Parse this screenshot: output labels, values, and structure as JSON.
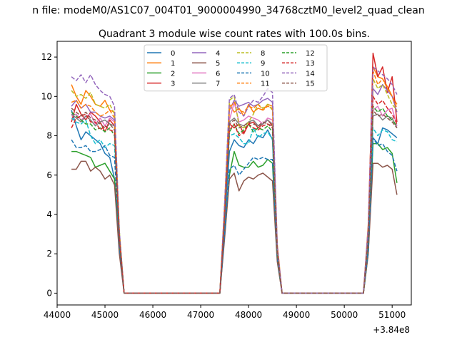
{
  "figure": {
    "suptitle": "n file: modeM0/AS1C07_004T01_9000004990_34768cztM0_level2_quad_clean",
    "offset_label": "+3.84e8"
  },
  "chart_data": {
    "type": "line",
    "title": "Quadrant 3 module wise count rates with 100.0s bins.",
    "xlabel": "",
    "ylabel": "",
    "xlim": [
      44000,
      51400
    ],
    "ylim": [
      -0.6,
      12.8
    ],
    "x_offset": 384000000,
    "x_ticks": [
      44000,
      45000,
      46000,
      47000,
      48000,
      49000,
      50000,
      51000
    ],
    "x_tick_labels": [
      "44000",
      "45000",
      "46000",
      "47000",
      "48000",
      "49000",
      "50000",
      "51000"
    ],
    "y_ticks": [
      0,
      2,
      4,
      6,
      8,
      10,
      12
    ],
    "y_tick_labels": [
      "0",
      "2",
      "4",
      "6",
      "8",
      "10",
      "12"
    ],
    "grid": false,
    "legend": {
      "placement": "top-center",
      "columns": 4
    },
    "x": [
      44300,
      44400,
      44500,
      44600,
      44700,
      44800,
      44900,
      45000,
      45100,
      45200,
      45300,
      45400,
      45500,
      46000,
      46500,
      47000,
      47400,
      47500,
      47600,
      47700,
      47800,
      47900,
      48000,
      48100,
      48200,
      48300,
      48400,
      48500,
      48600,
      48700,
      48800,
      49500,
      50000,
      50400,
      50500,
      50600,
      50700,
      50800,
      50900,
      51000,
      51100
    ],
    "series": [
      {
        "name": "0",
        "color": "#1f77b4",
        "dash": false,
        "values": [
          9.3,
          8.5,
          7.8,
          8.2,
          8.0,
          7.8,
          7.6,
          7.1,
          6.9,
          5.8,
          3.0,
          0,
          0,
          0,
          0,
          0,
          0,
          3.5,
          7.2,
          7.8,
          7.5,
          7.4,
          7.8,
          7.6,
          8.0,
          7.9,
          8.3,
          7.8,
          2.0,
          0,
          0,
          0,
          0,
          0,
          2.3,
          7.9,
          7.6,
          8.4,
          8.3,
          8.1,
          7.9
        ]
      },
      {
        "name": "1",
        "color": "#ff7f0e",
        "dash": false,
        "values": [
          10.6,
          10.0,
          9.6,
          10.3,
          10.0,
          9.6,
          9.5,
          9.8,
          9.3,
          9.2,
          3.0,
          0,
          0,
          0,
          0,
          0,
          0,
          4.5,
          9.6,
          9.2,
          9.4,
          9.0,
          9.6,
          9.2,
          9.4,
          9.3,
          9.6,
          9.5,
          2.5,
          0,
          0,
          0,
          0,
          0,
          3.5,
          11.5,
          11.0,
          10.9,
          10.5,
          10.0,
          9.6
        ]
      },
      {
        "name": "2",
        "color": "#2ca02c",
        "dash": false,
        "values": [
          7.2,
          7.2,
          7.1,
          7.0,
          6.9,
          6.4,
          6.5,
          6.6,
          6.2,
          5.8,
          2.5,
          0,
          0,
          0,
          0,
          0,
          0,
          3.0,
          6.0,
          7.2,
          6.5,
          6.4,
          6.4,
          6.7,
          6.4,
          6.5,
          6.8,
          6.6,
          1.8,
          0,
          0,
          0,
          0,
          0,
          2.0,
          7.6,
          7.6,
          7.3,
          7.4,
          7.1,
          5.6
        ]
      },
      {
        "name": "3",
        "color": "#d62728",
        "dash": false,
        "values": [
          8.7,
          9.6,
          9.1,
          8.8,
          9.2,
          9.0,
          8.7,
          8.2,
          8.8,
          8.5,
          3.0,
          0,
          0,
          0,
          0,
          0,
          0,
          4.2,
          8.6,
          8.4,
          8.6,
          8.1,
          8.6,
          8.7,
          8.4,
          8.6,
          8.8,
          8.5,
          2.2,
          0,
          0,
          0,
          0,
          0,
          3.0,
          12.2,
          11.0,
          11.5,
          10.2,
          11.0,
          8.7
        ]
      },
      {
        "name": "4",
        "color": "#9467bd",
        "dash": false,
        "values": [
          9.5,
          9.8,
          9.4,
          9.6,
          9.2,
          9.2,
          9.0,
          8.9,
          9.0,
          8.8,
          3.0,
          0,
          0,
          0,
          0,
          0,
          0,
          4.3,
          9.3,
          9.8,
          9.5,
          9.6,
          9.7,
          9.5,
          9.6,
          9.8,
          9.9,
          9.7,
          2.2,
          0,
          0,
          0,
          0,
          0,
          3.2,
          10.4,
          10.1,
          10.6,
          10.3,
          10.0,
          9.2
        ]
      },
      {
        "name": "5",
        "color": "#8c564b",
        "dash": false,
        "values": [
          6.3,
          6.3,
          6.7,
          6.7,
          6.2,
          6.4,
          6.2,
          5.8,
          6.0,
          5.5,
          2.0,
          0,
          0,
          0,
          0,
          0,
          0,
          2.8,
          5.8,
          6.1,
          5.2,
          5.7,
          5.9,
          5.8,
          6.0,
          6.1,
          5.9,
          5.7,
          1.6,
          0,
          0,
          0,
          0,
          0,
          2.0,
          6.6,
          6.6,
          6.4,
          6.5,
          6.3,
          5.0
        ]
      },
      {
        "name": "6",
        "color": "#e377c2",
        "dash": false,
        "values": [
          9.0,
          9.1,
          8.8,
          9.0,
          9.1,
          8.6,
          8.9,
          8.5,
          8.9,
          8.7,
          3.0,
          0,
          0,
          0,
          0,
          0,
          0,
          4.2,
          8.8,
          9.7,
          8.7,
          8.8,
          9.0,
          8.9,
          8.8,
          8.6,
          8.9,
          8.8,
          2.2,
          0,
          0,
          0,
          0,
          0,
          3.2,
          9.3,
          9.5,
          9.0,
          9.3,
          9.4,
          8.5
        ]
      },
      {
        "name": "7",
        "color": "#7f7f7f",
        "dash": false,
        "values": [
          9.1,
          8.9,
          8.7,
          9.0,
          8.8,
          8.5,
          8.7,
          8.8,
          8.6,
          8.5,
          3.0,
          0,
          0,
          0,
          0,
          0,
          0,
          4.0,
          8.7,
          8.9,
          8.6,
          8.5,
          8.7,
          8.8,
          8.5,
          8.6,
          8.8,
          8.6,
          2.1,
          0,
          0,
          0,
          0,
          0,
          3.0,
          9.0,
          9.1,
          8.8,
          9.0,
          8.9,
          8.4
        ]
      },
      {
        "name": "8",
        "color": "#bcbd22",
        "dash": true,
        "values": [
          10.3,
          10.0,
          10.1,
          9.9,
          10.2,
          9.6,
          9.5,
          9.4,
          9.6,
          9.1,
          3.2,
          0,
          0,
          0,
          0,
          0,
          0,
          4.5,
          9.8,
          10.0,
          8.5,
          8.4,
          8.7,
          9.1,
          9.6,
          9.4,
          9.6,
          9.3,
          2.3,
          0,
          0,
          0,
          0,
          0,
          3.3,
          10.9,
          10.4,
          10.6,
          10.1,
          9.6,
          9.3
        ]
      },
      {
        "name": "9",
        "color": "#17becf",
        "dash": true,
        "values": [
          8.9,
          8.7,
          8.6,
          8.8,
          8.0,
          7.6,
          7.8,
          7.4,
          7.6,
          7.5,
          2.6,
          0,
          0,
          0,
          0,
          0,
          0,
          3.6,
          8.0,
          8.1,
          7.9,
          7.6,
          7.6,
          8.4,
          7.9,
          8.1,
          8.2,
          7.8,
          2.0,
          0,
          0,
          0,
          0,
          0,
          2.7,
          8.4,
          8.0,
          8.3,
          8.2,
          7.8,
          7.7
        ]
      },
      {
        "name": "10",
        "color": "#1f77b4",
        "dash": true,
        "values": [
          7.8,
          7.4,
          7.4,
          7.5,
          7.2,
          7.2,
          7.3,
          7.5,
          7.0,
          6.9,
          2.4,
          0,
          0,
          0,
          0,
          0,
          0,
          3.0,
          6.3,
          6.5,
          6.0,
          6.3,
          6.6,
          6.9,
          6.8,
          6.9,
          6.8,
          6.8,
          1.8,
          0,
          0,
          0,
          0,
          0,
          2.2,
          7.9,
          7.5,
          7.6,
          7.2,
          7.0,
          6.2
        ]
      },
      {
        "name": "11",
        "color": "#ff7f0e",
        "dash": true,
        "values": [
          9.7,
          9.8,
          9.4,
          9.6,
          9.5,
          9.2,
          9.0,
          9.1,
          9.3,
          8.9,
          3.0,
          0,
          0,
          0,
          0,
          0,
          0,
          4.3,
          9.4,
          9.7,
          9.3,
          9.2,
          9.5,
          9.4,
          9.6,
          9.3,
          9.5,
          9.4,
          2.2,
          0,
          0,
          0,
          0,
          0,
          3.2,
          11.3,
          10.6,
          10.9,
          10.4,
          10.0,
          9.4
        ]
      },
      {
        "name": "12",
        "color": "#2ca02c",
        "dash": true,
        "values": [
          9.2,
          9.0,
          8.8,
          8.6,
          8.6,
          8.3,
          8.4,
          8.2,
          8.4,
          8.0,
          2.8,
          0,
          0,
          0,
          0,
          0,
          0,
          4.0,
          8.2,
          8.6,
          8.1,
          8.3,
          8.6,
          8.2,
          8.4,
          8.3,
          8.5,
          8.2,
          2.0,
          0,
          0,
          0,
          0,
          0,
          2.8,
          9.5,
          9.2,
          9.4,
          9.0,
          8.8,
          8.5
        ]
      },
      {
        "name": "13",
        "color": "#d62728",
        "dash": true,
        "values": [
          8.4,
          8.9,
          9.0,
          9.1,
          8.7,
          8.7,
          8.3,
          8.5,
          8.3,
          8.2,
          2.8,
          0,
          0,
          0,
          0,
          0,
          0,
          3.9,
          8.3,
          8.6,
          8.0,
          8.2,
          8.6,
          8.4,
          8.3,
          8.5,
          8.6,
          8.4,
          2.1,
          0,
          0,
          0,
          0,
          0,
          2.9,
          10.0,
          9.6,
          9.8,
          9.4,
          9.1,
          8.6
        ]
      },
      {
        "name": "14",
        "color": "#9467bd",
        "dash": true,
        "values": [
          11.0,
          10.8,
          11.1,
          10.7,
          11.1,
          10.6,
          10.3,
          10.1,
          10.0,
          9.5,
          3.2,
          0,
          0,
          0,
          0,
          0,
          0,
          4.6,
          9.9,
          10.1,
          9.2,
          9.0,
          9.5,
          9.8,
          9.7,
          10.0,
          10.4,
          10.2,
          2.4,
          0,
          0,
          0,
          0,
          0,
          3.4,
          11.5,
          11.3,
          11.1,
          10.9,
          10.6,
          10.1
        ]
      },
      {
        "name": "15",
        "color": "#8c564b",
        "dash": true,
        "values": [
          9.4,
          9.2,
          9.0,
          9.2,
          8.9,
          8.8,
          8.6,
          8.4,
          8.6,
          8.3,
          2.9,
          0,
          0,
          0,
          0,
          0,
          0,
          3.8,
          8.6,
          8.8,
          8.4,
          8.5,
          8.7,
          8.6,
          8.5,
          8.7,
          8.6,
          8.5,
          2.1,
          0,
          0,
          0,
          0,
          0,
          2.8,
          9.3,
          9.0,
          9.1,
          8.9,
          8.7,
          8.4
        ]
      }
    ]
  }
}
